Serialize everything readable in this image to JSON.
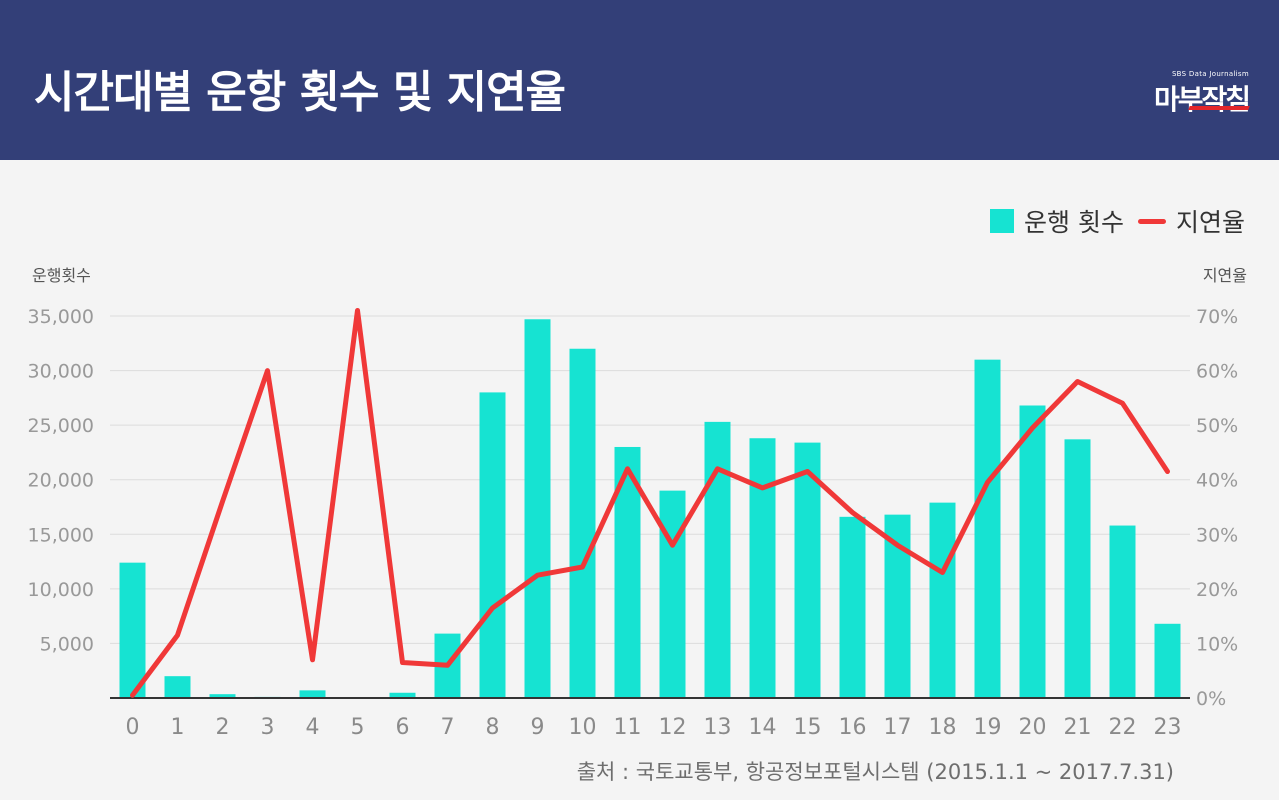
{
  "header": {
    "title": "시간대별 운항 횟수 및 지연율",
    "logo_sub": "SBS Data Journalism",
    "logo_main": "마부작침"
  },
  "legend": {
    "bars_label": "운행 횟수",
    "line_label": "지연율"
  },
  "axes": {
    "left_title": "운행횟수",
    "right_title": "지연율"
  },
  "source": "출처 : 국토교통부, 항공정보포털시스템 (2015.1.1 ~ 2017.7.31)",
  "colors": {
    "bar": "#16e3d2",
    "line": "#f03838",
    "header": "#333f78"
  },
  "chart_data": {
    "type": "bar+line",
    "categories": [
      "0",
      "1",
      "2",
      "3",
      "4",
      "5",
      "6",
      "7",
      "8",
      "9",
      "10",
      "11",
      "12",
      "13",
      "14",
      "15",
      "16",
      "17",
      "18",
      "19",
      "20",
      "21",
      "22",
      "23"
    ],
    "series": [
      {
        "name": "운행 횟수",
        "type": "bar",
        "axis": "left",
        "values": [
          12400,
          2000,
          350,
          100,
          700,
          80,
          480,
          5900,
          28000,
          34700,
          32000,
          23000,
          19000,
          25300,
          23800,
          23400,
          16600,
          16800,
          17900,
          31000,
          26800,
          23700,
          15800,
          6800
        ]
      },
      {
        "name": "지연율",
        "type": "line",
        "axis": "right",
        "values": [
          0.5,
          11.5,
          36,
          60,
          7,
          71,
          6.5,
          6,
          16.5,
          22.5,
          24,
          42,
          28,
          42,
          38.5,
          41.5,
          34,
          28,
          23,
          39.5,
          49.5,
          58,
          54,
          41.5
        ]
      }
    ],
    "y_left": {
      "min": 0,
      "max": 35000,
      "ticks": [
        "5,000",
        "10,000",
        "15,000",
        "20,000",
        "25,000",
        "30,000",
        "35,000"
      ]
    },
    "y_right": {
      "min": 0,
      "max": 70,
      "ticks": [
        "0%",
        "10%",
        "20%",
        "30%",
        "40%",
        "50%",
        "60%",
        "70%"
      ]
    },
    "xlabel": "",
    "grid": true
  }
}
